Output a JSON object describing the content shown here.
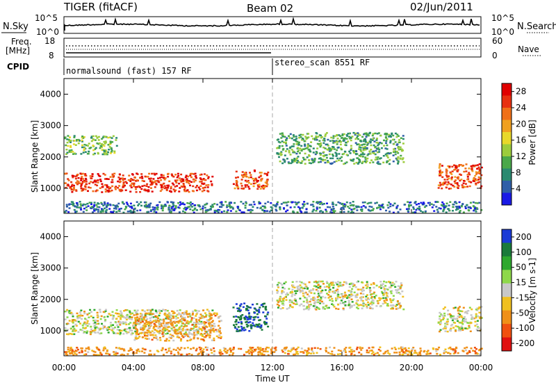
{
  "header": {
    "radar": "TIGER (fitACF)",
    "beam": "Beam 02",
    "date": "02/Jun/2011"
  },
  "top_panels": {
    "nsky": {
      "label": "N.Sky",
      "ticks_left": [
        "10^5",
        "10^0"
      ],
      "ticks_right": [
        "10^5",
        "10^0"
      ],
      "right_label": "N.Search"
    },
    "freq": {
      "label_line1": "Freq.",
      "label_line2": "[MHz]",
      "ticks_left": [
        "18",
        "8"
      ],
      "ticks_right": [
        "60",
        "0"
      ],
      "right_label": "Nave"
    },
    "cpid": {
      "label": "CPID",
      "segments": [
        {
          "text": "normalsound (fast) 157 RF",
          "start_hour": 0
        },
        {
          "text": "stereo_scan 8551 RF",
          "start_hour": 12
        }
      ]
    }
  },
  "chart_data": [
    {
      "type": "heatmap",
      "panel": "power",
      "ylabel": "Slant Range [km]",
      "yticks": [
        "1000",
        "2000",
        "3000",
        "4000"
      ],
      "ylim": [
        200,
        4500
      ],
      "xlim_hours": [
        0,
        24
      ],
      "colorbar": {
        "label": "Power [dB]",
        "ticks": [
          "4",
          "8",
          "12",
          "16",
          "20",
          "24",
          "28"
        ],
        "range": [
          0,
          30
        ],
        "colors": [
          "#1a1ae6",
          "#2f5fa8",
          "#2a8a70",
          "#4aa84a",
          "#9ccc3c",
          "#e8d82a",
          "#f0a020",
          "#f07018",
          "#e83010",
          "#e00000"
        ]
      },
      "features": [
        {
          "hours": [
            0,
            8.5
          ],
          "range_km": [
            900,
            1500
          ],
          "level_db": 26
        },
        {
          "hours": [
            0,
            3
          ],
          "range_km": [
            2100,
            2700
          ],
          "level_db": 12
        },
        {
          "hours": [
            9.7,
            11.7
          ],
          "range_km": [
            1000,
            1600
          ],
          "level_db": 24
        },
        {
          "hours": [
            12.2,
            19.5
          ],
          "range_km": [
            1800,
            2800
          ],
          "level_db": 10
        },
        {
          "hours": [
            21.5,
            24
          ],
          "range_km": [
            1000,
            1800
          ],
          "level_db": 24
        },
        {
          "hours": [
            0,
            24
          ],
          "range_km": [
            250,
            600
          ],
          "level_db": 6
        }
      ]
    },
    {
      "type": "heatmap",
      "panel": "velocity",
      "ylabel": "Slant Range [km]",
      "yticks": [
        "1000",
        "2000",
        "3000",
        "4000"
      ],
      "ylim": [
        200,
        4500
      ],
      "xlim_hours": [
        0,
        24
      ],
      "xticks": [
        "00:00",
        "04:00",
        "08:00",
        "12:00",
        "16:00",
        "20:00",
        "00:00"
      ],
      "xlabel": "Time UT",
      "colorbar": {
        "label": "Velocity [m s-1]",
        "ticks": [
          "200",
          "100",
          "50",
          "15",
          "-15",
          "-50",
          "-100",
          "-200"
        ],
        "colors": [
          "#1a3ad6",
          "#1a7a3a",
          "#2ea82e",
          "#8ed84a",
          "#c8c8c8",
          "#f0c020",
          "#f09018",
          "#f05010",
          "#e01010"
        ]
      },
      "features": [
        {
          "hours": [
            0,
            8.5
          ],
          "range_km": [
            900,
            1700
          ],
          "velocity": 0
        },
        {
          "hours": [
            4,
            9
          ],
          "range_km": [
            700,
            1600
          ],
          "velocity": -40
        },
        {
          "hours": [
            9.7,
            11.7
          ],
          "range_km": [
            1000,
            1900
          ],
          "velocity": 150
        },
        {
          "hours": [
            12.2,
            19.5
          ],
          "range_km": [
            1700,
            2600
          ],
          "velocity": 0
        },
        {
          "hours": [
            21.5,
            24
          ],
          "range_km": [
            1000,
            1800
          ],
          "velocity": 0
        },
        {
          "hours": [
            0,
            24
          ],
          "range_km": [
            250,
            500
          ],
          "velocity": -50
        }
      ]
    }
  ]
}
